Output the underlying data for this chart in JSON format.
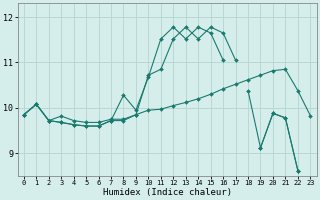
{
  "xlabel": "Humidex (Indice chaleur)",
  "bg_color": "#d5eeec",
  "grid_color": "#b8d8d6",
  "line_color": "#1a7a6e",
  "xlim": [
    -0.5,
    23.5
  ],
  "ylim": [
    8.5,
    12.3
  ],
  "yticks": [
    9,
    10,
    11,
    12
  ],
  "xticks": [
    0,
    1,
    2,
    3,
    4,
    5,
    6,
    7,
    8,
    9,
    10,
    11,
    12,
    13,
    14,
    15,
    16,
    17,
    18,
    19,
    20,
    21,
    22,
    23
  ],
  "lines": [
    {
      "x": [
        0,
        1,
        2,
        3,
        4,
        5,
        6,
        7,
        8,
        9,
        10,
        11,
        12,
        13,
        14,
        15,
        16,
        17,
        18,
        19,
        20,
        21,
        22,
        23
      ],
      "y": [
        9.85,
        10.08,
        9.72,
        9.82,
        9.72,
        9.68,
        9.68,
        9.75,
        9.75,
        9.85,
        9.95,
        9.97,
        10.05,
        10.12,
        10.2,
        10.3,
        10.42,
        10.52,
        10.62,
        10.72,
        10.82,
        10.85,
        10.38,
        9.83
      ]
    },
    {
      "x": [
        0,
        1,
        2,
        3,
        4,
        5,
        6,
        7,
        8,
        9,
        10,
        11,
        12,
        13,
        14,
        15,
        16,
        17,
        18,
        19,
        20,
        21,
        22,
        23
      ],
      "y": [
        9.85,
        10.08,
        9.72,
        9.68,
        9.63,
        9.6,
        9.6,
        9.72,
        9.72,
        9.85,
        10.72,
        10.85,
        11.52,
        11.78,
        11.52,
        11.78,
        11.65,
        11.05,
        null,
        null,
        null,
        null,
        null,
        null
      ]
    },
    {
      "x": [
        0,
        1,
        2,
        3,
        4,
        5,
        6,
        7,
        8,
        9,
        10,
        11,
        12,
        13,
        14,
        15,
        16,
        17,
        18,
        19,
        20,
        21,
        22,
        23
      ],
      "y": [
        9.85,
        10.08,
        9.72,
        9.68,
        9.63,
        9.6,
        9.6,
        9.72,
        10.28,
        9.95,
        10.68,
        11.52,
        11.78,
        11.52,
        11.78,
        11.65,
        11.05,
        null,
        null,
        null,
        null,
        null,
        null,
        null
      ]
    },
    {
      "x": [
        19,
        20,
        21,
        22,
        23
      ],
      "y": [
        9.12,
        9.88,
        9.78,
        8.62,
        null
      ]
    },
    {
      "x": [
        18,
        19,
        20,
        21,
        22
      ],
      "y": [
        10.38,
        9.12,
        9.88,
        9.78,
        8.62
      ]
    }
  ]
}
